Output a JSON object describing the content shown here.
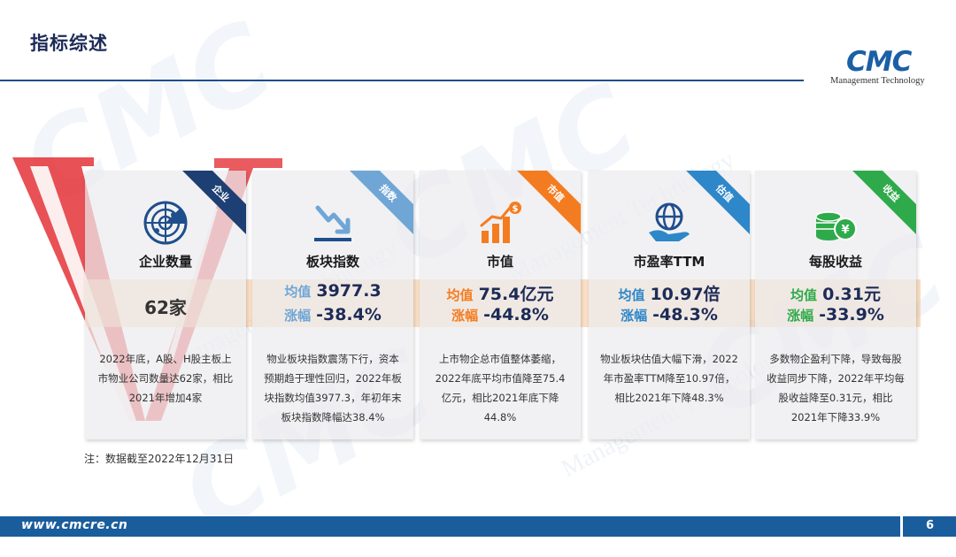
{
  "page_title": "指标综述",
  "logo": {
    "mark": "CMC",
    "sub": "Management Technology"
  },
  "colors": {
    "navy": "#1d2b57",
    "band": "#f7cba0"
  },
  "cards": [
    {
      "tag": "企业",
      "tag_color": "#1d3f73",
      "icon": "radar-icon",
      "title": "企业数量",
      "value": "62家",
      "desc": "2022年底，A股、H股主板上市物业公司数量达62家，相比2021年增加4家"
    },
    {
      "tag": "指数",
      "tag_color": "#6fa6d6",
      "icon": "trend-down-icon",
      "title": "板块指数",
      "label1": "均值",
      "value1": "3977.3",
      "label2": "涨幅",
      "value2": "-38.4%",
      "desc": "物业板块指数震荡下行，资本预期趋于理性回归，2022年板块指数均值3977.3，年初年末板块指数降幅达38.4%"
    },
    {
      "tag": "市值",
      "tag_color": "#f47c20",
      "icon": "dollar-chart-icon",
      "title": "市值",
      "label1": "均值",
      "value1": "75.4亿元",
      "label2": "涨幅",
      "value2": "-44.8%",
      "desc": "上市物企总市值整体萎缩，2022年底平均市值降至75.4亿元，相比2021年底下降44.8%"
    },
    {
      "tag": "估值",
      "tag_color": "#2e87c9",
      "icon": "globe-hand-icon",
      "title": "市盈率TTM",
      "label1": "均值",
      "value1": "10.97倍",
      "label2": "涨幅",
      "value2": "-48.3%",
      "desc": "物业板块估值大幅下滑，2022年市盈率TTM降至10.97倍，相比2021年下降48.3%"
    },
    {
      "tag": "收益",
      "tag_color": "#2eaa4a",
      "icon": "coins-icon",
      "title": "每股收益",
      "label1": "均值",
      "value1": "0.31元",
      "label2": "涨幅",
      "value2": "-33.9%",
      "desc": "多数物企盈利下降，导致每股收益同步下降，2022年平均每股收益降至0.31元，相比2021年下降33.9%"
    }
  ],
  "note": "注：数据截至2022年12月31日",
  "footer": {
    "url": "www.cmcre.cn",
    "page_number": "6"
  }
}
